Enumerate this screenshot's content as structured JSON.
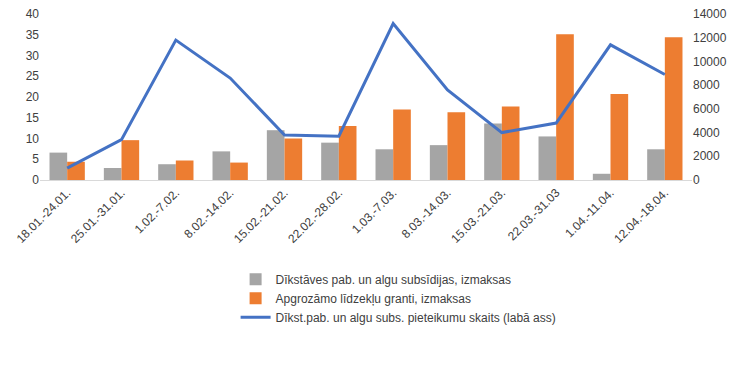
{
  "chart_data": {
    "type": "bar",
    "categories": [
      "18.01.-24.01.",
      "25.01.-31.01.",
      "1.02.-7.02.",
      "8.02.-14.02.",
      "15.02.-21.02.",
      "22.02.-28.02.",
      "1.03.-7.03.",
      "8.03.-14.03.",
      "15.03.-21.03.",
      "22.03.-31.03",
      "1.04.-11.04.",
      "12.04.-18.04."
    ],
    "series": [
      {
        "name": "Dīkstāves pab. un algu subsīdijas, izmaksas",
        "type": "bar",
        "color": "#a5a5a5",
        "values": [
          6.6,
          2.9,
          3.8,
          6.9,
          12.0,
          9.0,
          7.4,
          8.4,
          13.6,
          10.5,
          1.5,
          7.4
        ]
      },
      {
        "name": "Apgrozāmo līdzekļu granti, izmaksas",
        "type": "bar",
        "color": "#ed7d31",
        "values": [
          4.4,
          9.6,
          4.7,
          4.2,
          10.0,
          13.0,
          17.0,
          16.3,
          17.7,
          35.1,
          20.7,
          34.4
        ]
      },
      {
        "name": "Dīkst.pab. un algu subs. pieteikumu skaits (labā ass)",
        "type": "line",
        "color": "#4472c4",
        "axis": "y2",
        "values": [
          1000,
          3400,
          11800,
          8600,
          3800,
          3700,
          13200,
          7600,
          4000,
          4800,
          11400,
          8900
        ]
      }
    ],
    "ylim": [
      0,
      40
    ],
    "yticks": [
      0,
      5,
      10,
      15,
      20,
      25,
      30,
      35,
      40
    ],
    "y2lim": [
      0,
      14000
    ],
    "y2ticks": [
      0,
      2000,
      4000,
      6000,
      8000,
      10000,
      12000,
      14000
    ],
    "grid": false,
    "legend": "bottom"
  }
}
